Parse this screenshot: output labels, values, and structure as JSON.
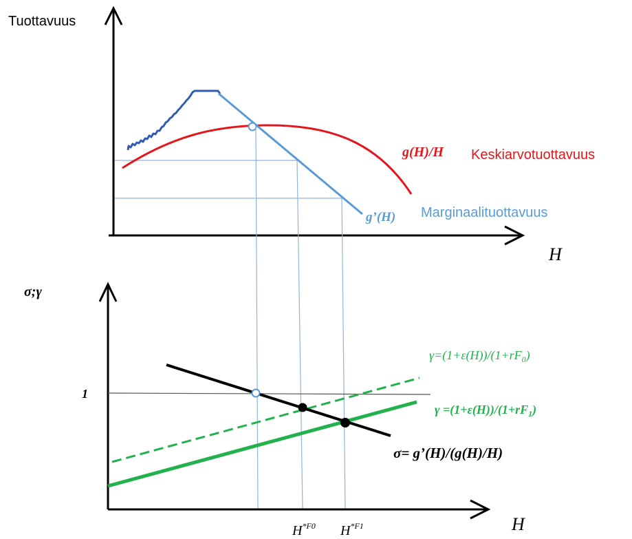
{
  "top_panel": {
    "y_axis_label": "Tuottavuus",
    "x_axis_label": "H",
    "average_curve": {
      "formula": "g(H)/H",
      "name": "Keskiarvotuottavuus",
      "color": "#e3161b"
    },
    "marginal_curve": {
      "formula": "g’(H)",
      "name": "Marginaalituottavuus",
      "color": "#5b9bd5"
    },
    "noisy_curve_color": "#2f5cb0"
  },
  "bottom_panel": {
    "y_axis_label": "σ;γ",
    "x_axis_label": "H",
    "y_tick_label": "1",
    "gamma_F0_label": "γ=(1+ε(H))/(1+rF",
    "gamma_F0_sub": "0",
    "gamma_F0_close": ")",
    "gamma_F1_label": "γ =(1+ε(H))/(1+rF",
    "gamma_F1_sub": "1",
    "gamma_F1_close": ")",
    "sigma_label": "σ= g’(H)/(g(H)/H)",
    "x_tick_F0_base": "H",
    "x_tick_F0_sup": "*F0",
    "x_tick_F1_base": "H",
    "x_tick_F1_sup": "*F1",
    "gamma_color": "#22b14c",
    "sigma_color": "#000000",
    "guide_color": "#8fb4d9"
  }
}
